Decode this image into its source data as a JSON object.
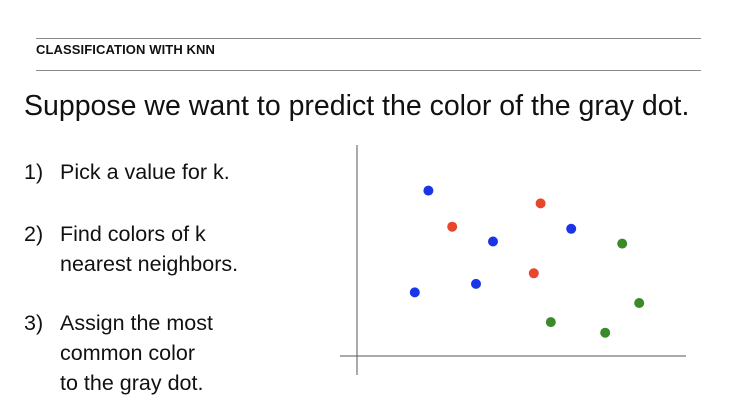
{
  "header": {
    "section_label": "CLASSIFICATION WITH KNN"
  },
  "headline": "Suppose we want to predict the color of the gray dot.",
  "steps": [
    {
      "number": "1)",
      "lines": [
        "Pick a value for k."
      ]
    },
    {
      "number": "2)",
      "lines": [
        "Find colors of k",
        "nearest neighbors."
      ]
    },
    {
      "number": "3)",
      "lines": [
        "Assign the most",
        "common color",
        "to the gray dot."
      ]
    }
  ],
  "colors": {
    "blue": "#1a35e8",
    "red": "#e8452c",
    "green": "#3a8a2a",
    "axis": "#555555"
  },
  "chart_data": {
    "type": "scatter",
    "title": "",
    "xlabel": "",
    "ylabel": "",
    "xlim": [
      0,
      100
    ],
    "ylim": [
      0,
      100
    ],
    "grid": false,
    "series": [
      {
        "color": "blue",
        "points": [
          [
            21,
            78
          ],
          [
            40,
            54
          ],
          [
            35,
            34
          ],
          [
            17,
            30
          ],
          [
            63,
            60
          ]
        ]
      },
      {
        "color": "red",
        "points": [
          [
            28,
            61
          ],
          [
            54,
            72
          ],
          [
            52,
            39
          ]
        ]
      },
      {
        "color": "green",
        "points": [
          [
            78,
            53
          ],
          [
            83,
            25
          ],
          [
            57,
            16
          ],
          [
            73,
            11
          ]
        ]
      }
    ]
  }
}
